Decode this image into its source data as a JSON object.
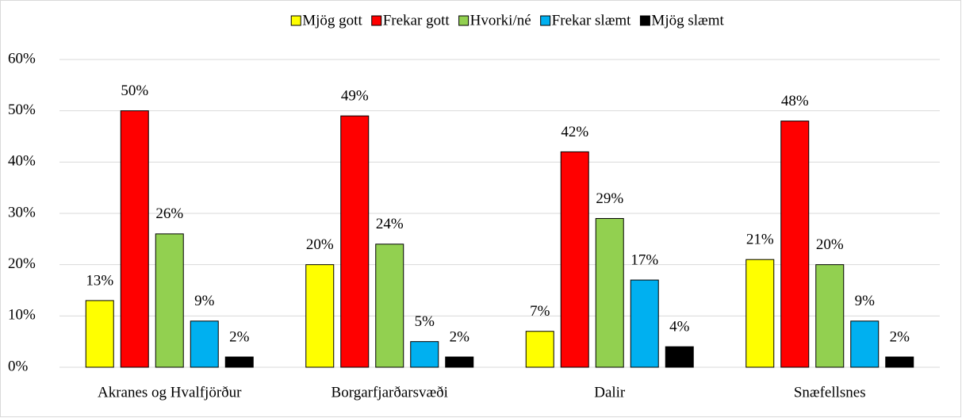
{
  "chart_data": {
    "type": "bar",
    "categories": [
      "Akranes og Hvalfjörður",
      "Borgarfjarðarsvæði",
      "Dalir",
      "Snæfellsnes"
    ],
    "series": [
      {
        "name": "Mjög gott",
        "color": "#ffff00",
        "values": [
          13,
          20,
          7,
          21
        ],
        "value_labels": [
          "13%",
          "20%",
          "7%",
          "21%"
        ]
      },
      {
        "name": "Frekar gott",
        "color": "#ff0000",
        "values": [
          50,
          49,
          42,
          48
        ],
        "value_labels": [
          "50%",
          "49%",
          "42%",
          "48%"
        ]
      },
      {
        "name": "Hvorki/né",
        "color": "#92d050",
        "values": [
          26,
          24,
          29,
          20
        ],
        "value_labels": [
          "26%",
          "24%",
          "29%",
          "20%"
        ]
      },
      {
        "name": "Frekar slæmt",
        "color": "#00b0f0",
        "values": [
          9,
          5,
          17,
          9
        ],
        "value_labels": [
          "9%",
          "5%",
          "17%",
          "9%"
        ]
      },
      {
        "name": "Mjög slæmt",
        "color": "#000000",
        "values": [
          2,
          2,
          4,
          2
        ],
        "value_labels": [
          "2%",
          "2%",
          "4%",
          "2%"
        ]
      }
    ],
    "ylim": [
      0,
      60
    ],
    "yticks": [
      {
        "value": 0,
        "label": "0%"
      },
      {
        "value": 10,
        "label": "10%"
      },
      {
        "value": 20,
        "label": "20%"
      },
      {
        "value": 30,
        "label": "30%"
      },
      {
        "value": 40,
        "label": "40%"
      },
      {
        "value": 50,
        "label": "50%"
      },
      {
        "value": 60,
        "label": "60%"
      }
    ],
    "grid": true,
    "legend": "top"
  }
}
